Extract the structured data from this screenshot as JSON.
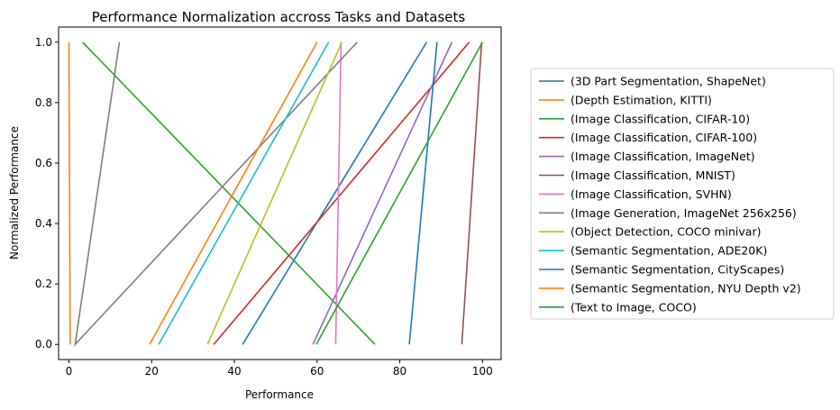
{
  "chart_data": {
    "type": "line",
    "title": "Performance Normalization accross Tasks and Datasets",
    "xlabel": "Performance",
    "ylabel": "Normalized Performance",
    "xlim": [
      -2.5,
      104.5
    ],
    "ylim": [
      -0.05,
      1.05
    ],
    "xticks": [
      0,
      20,
      40,
      60,
      80,
      100
    ],
    "yticks": [
      0.0,
      0.2,
      0.4,
      0.6,
      0.8,
      1.0
    ],
    "xtick_labels": [
      "0",
      "20",
      "40",
      "60",
      "80",
      "100"
    ],
    "ytick_labels": [
      "0.0",
      "0.2",
      "0.4",
      "0.6",
      "0.8",
      "1.0"
    ],
    "grid": false,
    "legend_position": "outside-right",
    "series": [
      {
        "name": "(3D Part Segmentation, ShapeNet)",
        "color": "#1f77b4",
        "x": [
          42.0,
          86.5
        ],
        "y": [
          0,
          1
        ]
      },
      {
        "name": "(Depth Estimation, KITTI)",
        "color": "#ff7f0e",
        "x": [
          0.3,
          0.0
        ],
        "y": [
          0,
          1
        ]
      },
      {
        "name": "(Image Classification, CIFAR-10)",
        "color": "#2ca02c",
        "x": [
          74.0,
          3.3
        ],
        "y": [
          0,
          1
        ]
      },
      {
        "name": "(Image Classification, CIFAR-100)",
        "color": "#d62728",
        "x": [
          35.0,
          96.8
        ],
        "y": [
          0,
          1
        ]
      },
      {
        "name": "(Image Classification, ImageNet)",
        "color": "#9467bd",
        "x": [
          59.0,
          92.6
        ],
        "y": [
          0,
          1
        ]
      },
      {
        "name": "(Image Classification, MNIST)",
        "color": "#8c564b",
        "x": [
          95.0,
          99.8
        ],
        "y": [
          0,
          1
        ]
      },
      {
        "name": "(Image Classification, SVHN)",
        "color": "#e377c2",
        "x": [
          64.5,
          65.8
        ],
        "y": [
          0,
          1
        ]
      },
      {
        "name": "(Image Generation, ImageNet 256x256)",
        "color": "#7f7f7f",
        "x": [
          12.2,
          1.5,
          69.7
        ],
        "y": [
          1,
          0,
          1
        ]
      },
      {
        "name": "(Object Detection, COCO minivar)",
        "color": "#bcbd22",
        "x": [
          33.5,
          66.0
        ],
        "y": [
          0,
          1
        ]
      },
      {
        "name": "(Semantic Segmentation, ADE20K)",
        "color": "#17becf",
        "x": [
          21.7,
          62.8
        ],
        "y": [
          0,
          1
        ]
      },
      {
        "name": "(Semantic Segmentation, CityScapes)",
        "color": "#1f77b4",
        "x": [
          82.3,
          89.0
        ],
        "y": [
          0,
          1
        ]
      },
      {
        "name": "(Semantic Segmentation, NYU Depth v2)",
        "color": "#ff7f0e",
        "x": [
          19.5,
          60.0
        ],
        "y": [
          0,
          1
        ]
      },
      {
        "name": "(Text to Image, COCO)",
        "color": "#2ca02c",
        "x": [
          59.8,
          100.0
        ],
        "y": [
          0,
          1
        ]
      }
    ]
  }
}
